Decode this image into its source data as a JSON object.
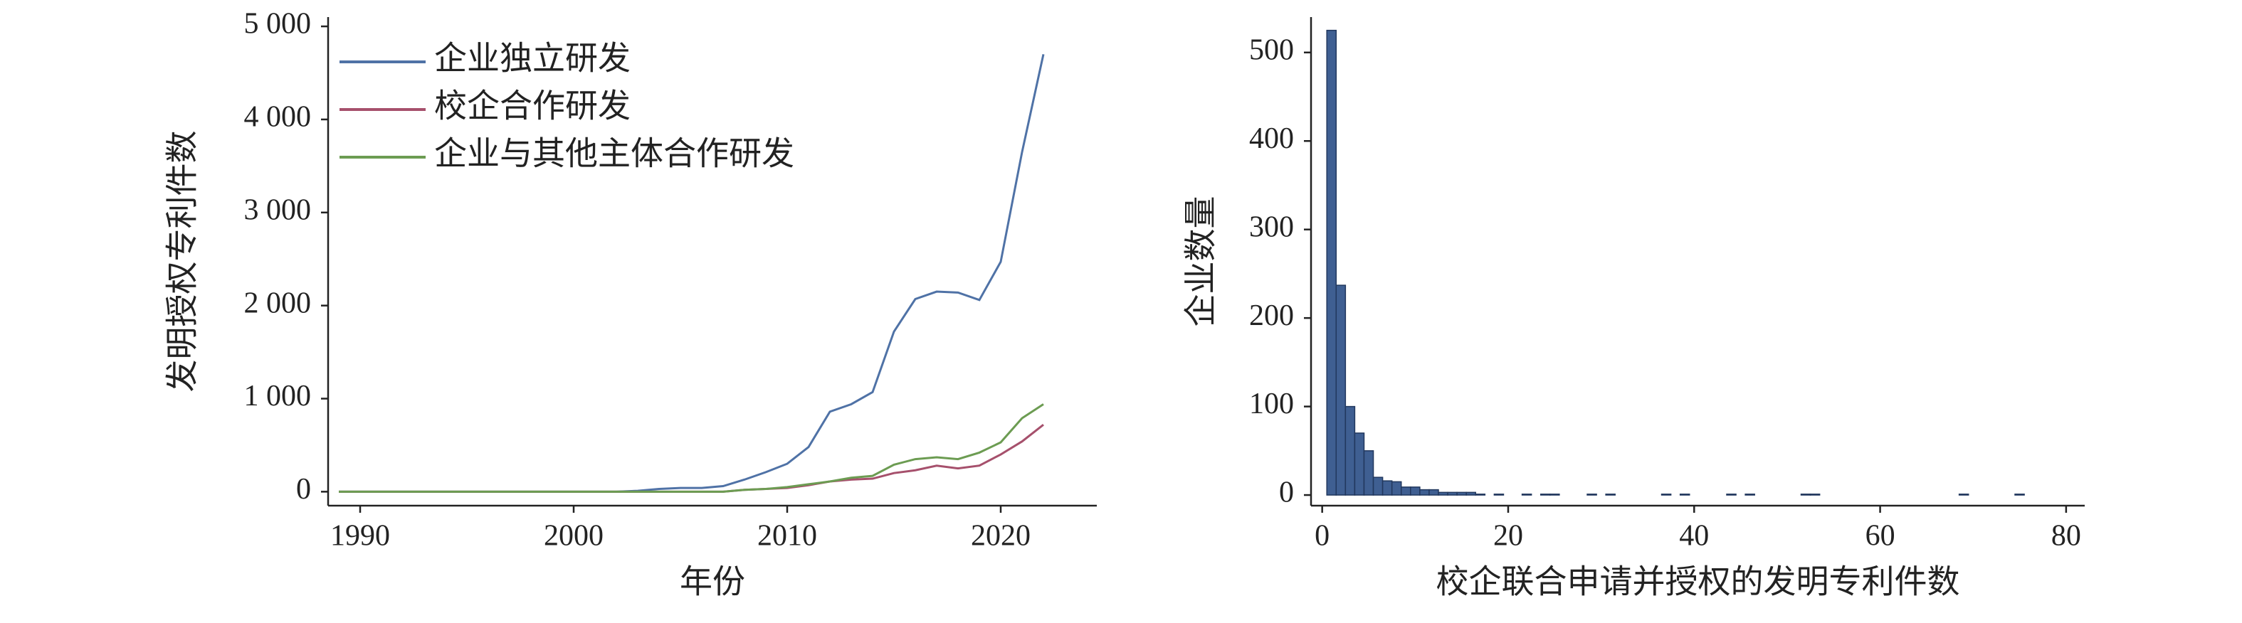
{
  "chart_data": [
    {
      "type": "line",
      "x": [
        1989,
        1990,
        1991,
        1992,
        1993,
        1994,
        1995,
        1996,
        1997,
        1998,
        1999,
        2000,
        2001,
        2002,
        2003,
        2004,
        2005,
        2006,
        2007,
        2008,
        2009,
        2010,
        2011,
        2012,
        2013,
        2014,
        2015,
        2016,
        2017,
        2018,
        2019,
        2020,
        2021,
        2022
      ],
      "series": [
        {
          "name": "企业独立研发",
          "color": "#4f72a6",
          "values": [
            0,
            0,
            0,
            0,
            0,
            0,
            0,
            0,
            0,
            0,
            0,
            0,
            0,
            0,
            10,
            30,
            40,
            40,
            60,
            130,
            210,
            300,
            480,
            860,
            940,
            1070,
            1720,
            2070,
            2150,
            2140,
            2060,
            2470,
            3650,
            4700
          ]
        },
        {
          "name": "校企合作研发",
          "color": "#a6506c",
          "values": [
            0,
            0,
            0,
            0,
            0,
            0,
            0,
            0,
            0,
            0,
            0,
            0,
            0,
            0,
            0,
            0,
            0,
            0,
            0,
            20,
            30,
            40,
            70,
            110,
            130,
            140,
            200,
            230,
            280,
            250,
            280,
            400,
            540,
            720
          ]
        },
        {
          "name": "企业与其他主体合作研发",
          "color": "#6c9c52",
          "values": [
            0,
            0,
            0,
            0,
            0,
            0,
            0,
            0,
            0,
            0,
            0,
            0,
            0,
            0,
            0,
            0,
            0,
            0,
            0,
            20,
            30,
            50,
            80,
            110,
            150,
            170,
            290,
            350,
            370,
            350,
            420,
            530,
            790,
            940
          ]
        }
      ],
      "xlabel": "年份",
      "ylabel": "发明授权专利件数",
      "xlim": [
        1988.5,
        2024.5
      ],
      "xticks": [
        1990,
        2000,
        2010,
        2020
      ],
      "ylim": [
        -150,
        5100
      ],
      "yticks": [
        0,
        {
          "value": 1000,
          "label": "1 000"
        },
        {
          "value": 2000,
          "label": "2 000"
        },
        {
          "value": 3000,
          "label": "3 000"
        },
        {
          "value": 4000,
          "label": "4 000"
        },
        {
          "value": 5000,
          "label": "5 000"
        }
      ],
      "legend": "upper left",
      "grid": false
    },
    {
      "type": "histogram",
      "color": "#3f5f92",
      "bins": [
        0.5,
        1.5,
        2.5,
        3.5,
        4.5,
        5.5,
        6.5,
        7.5,
        8.5,
        9.5,
        10.5,
        11.5,
        12.5,
        13.5,
        14.5,
        15.5,
        16.5,
        17.5,
        18.5,
        19.5,
        20.5,
        21.5,
        22.5,
        23.5,
        24.5,
        25.5,
        26.5,
        27.5,
        28.5,
        29.5,
        30.5,
        31.5,
        32.5,
        33.5,
        34.5,
        35.5,
        36.5,
        37.5,
        38.5,
        39.5,
        40.5,
        41.5,
        42.5,
        43.5,
        44.5,
        45.5,
        46.5,
        47.5,
        48.5,
        49.5,
        50.5,
        51.5,
        52.5,
        53.5,
        54.5,
        55.5,
        56.5,
        57.5,
        58.5,
        59.5,
        60.5,
        61.5,
        62.5,
        63.5,
        64.5,
        65.5,
        66.5,
        67.5,
        68.5,
        69.5,
        70.5,
        71.5,
        72.5,
        73.5,
        74.5,
        75.5,
        76.5
      ],
      "values": [
        525,
        237,
        100,
        70,
        50,
        20,
        16,
        15,
        9,
        9,
        6,
        6,
        3,
        3,
        3,
        3,
        1,
        0,
        1,
        0,
        0,
        1,
        0,
        1,
        1,
        0,
        0,
        0,
        1,
        0,
        1,
        0,
        0,
        0,
        0,
        0,
        1,
        0,
        1,
        0,
        0,
        0,
        0,
        1,
        0,
        1,
        0,
        0,
        0,
        0,
        0,
        1,
        1,
        0,
        0,
        0,
        0,
        0,
        0,
        0,
        0,
        0,
        0,
        0,
        0,
        0,
        0,
        0,
        1,
        0,
        0,
        0,
        0,
        0,
        1,
        0
      ],
      "xlabel": "校企联合申请并授权的发明专利件数",
      "ylabel": "企业数量",
      "xlim": [
        -1.2,
        82
      ],
      "xticks": [
        0,
        20,
        40,
        60,
        80
      ],
      "ylim": [
        -12,
        540
      ],
      "yticks": [
        0,
        100,
        200,
        300,
        400,
        500
      ],
      "grid": false
    }
  ]
}
